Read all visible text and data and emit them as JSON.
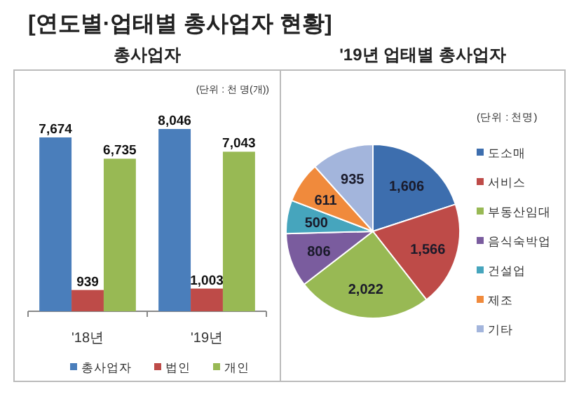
{
  "chart_data": [
    {
      "type": "bar",
      "title": "[연도별·업태별 총사업자 현황]",
      "subtitle": "총사업자",
      "categories": [
        "'18년",
        "'19년"
      ],
      "series": [
        {
          "name": "총사업자",
          "color": "#4a7ebb",
          "values": [
            7674,
            8046
          ],
          "value_labels": [
            "7,674",
            "8,046"
          ]
        },
        {
          "name": "법인",
          "color": "#be4b48",
          "values": [
            939,
            1003
          ],
          "value_labels": [
            "939",
            "1,003"
          ]
        },
        {
          "name": "개인",
          "color": "#98b954",
          "values": [
            6735,
            7043
          ],
          "value_labels": [
            "6,735",
            "7,043"
          ]
        }
      ],
      "legend": "bottom",
      "annotations": [
        "(단위 : 천 명(개))"
      ]
    },
    {
      "type": "pie",
      "subtitle": "'19년 업태별 총사업자",
      "categories": [
        "도소매",
        "서비스",
        "부동산임대",
        "음식숙박업",
        "건설업",
        "제조",
        "기타"
      ],
      "values": [
        1606,
        1566,
        2022,
        806,
        500,
        611,
        935
      ],
      "value_labels": [
        "1,606",
        "1,566",
        "2,022",
        "806",
        "500",
        "611",
        "935"
      ],
      "colors": [
        "#3d6eae",
        "#be4b48",
        "#98b954",
        "#7a5c9e",
        "#46a5bd",
        "#f08a3c",
        "#a3b5dc"
      ],
      "legend": "right",
      "annotations": [
        "(단위 : 천명)"
      ]
    }
  ]
}
